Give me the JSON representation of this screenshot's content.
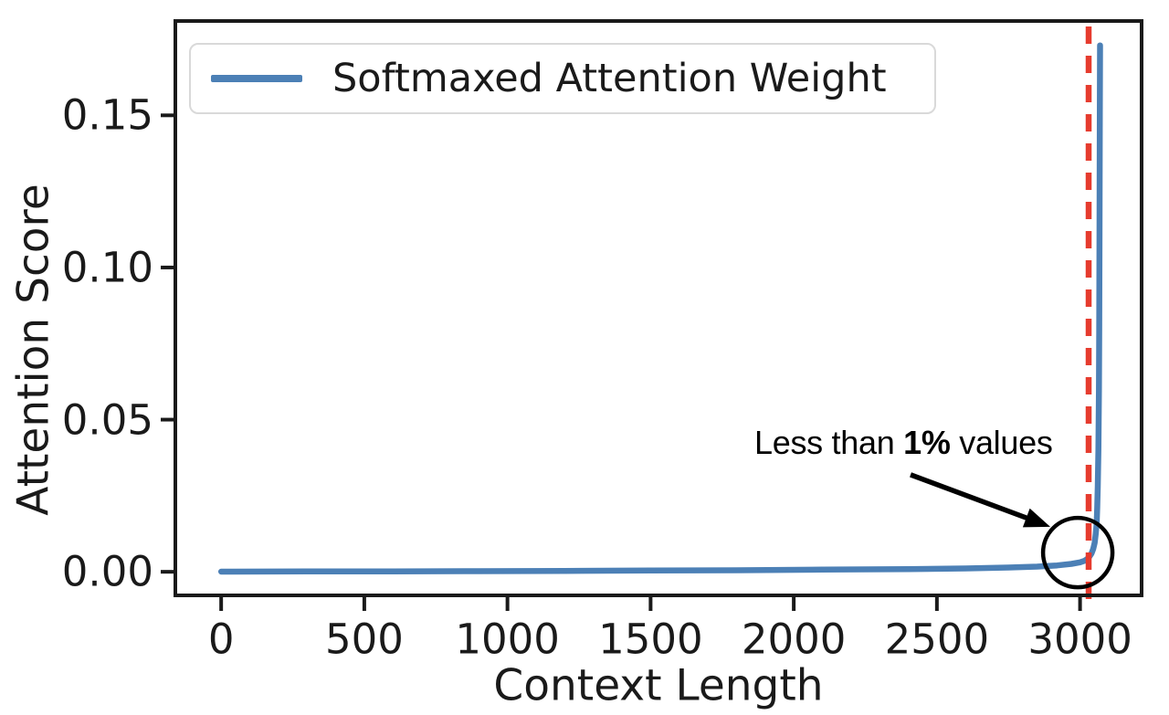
{
  "figure": {
    "background": "#ffffff",
    "text_color": "#1a1a1a",
    "frame_color": "#1a1a1a"
  },
  "chart_data": {
    "type": "line",
    "title": "",
    "xlabel": "Context Length",
    "ylabel": "Attention Score",
    "xlim": [
      -160,
      3215
    ],
    "ylim": [
      -0.00775,
      0.181
    ],
    "x_ticks": [
      0,
      500,
      1000,
      1500,
      2000,
      2500,
      3000
    ],
    "y_ticks": [
      "0.00",
      "0.05",
      "0.10",
      "0.15"
    ],
    "grid": false,
    "legend": {
      "position": "upper left",
      "entries": [
        {
          "label": "Softmaxed Attention Weight",
          "color": "#4c80b6"
        }
      ]
    },
    "series": [
      {
        "name": "Softmaxed Attention Weight",
        "color": "#4c80b6",
        "points": [
          [
            0,
            5e-05
          ],
          [
            300,
            0.0001
          ],
          [
            600,
            0.00015
          ],
          [
            900,
            0.0002
          ],
          [
            1200,
            0.0003
          ],
          [
            1500,
            0.0004
          ],
          [
            1800,
            0.0005
          ],
          [
            2100,
            0.0007
          ],
          [
            2400,
            0.0009
          ],
          [
            2600,
            0.0011
          ],
          [
            2750,
            0.0014
          ],
          [
            2850,
            0.0017
          ],
          [
            2920,
            0.0021
          ],
          [
            2970,
            0.0026
          ],
          [
            3000,
            0.0031
          ],
          [
            3015,
            0.0036
          ],
          [
            3025,
            0.0042
          ],
          [
            3033,
            0.005
          ],
          [
            3040,
            0.006
          ],
          [
            3046,
            0.0075
          ],
          [
            3051,
            0.0095
          ],
          [
            3055,
            0.0125
          ],
          [
            3058,
            0.016
          ],
          [
            3060,
            0.021
          ],
          [
            3062,
            0.028
          ],
          [
            3064,
            0.04
          ],
          [
            3066,
            0.06
          ],
          [
            3067,
            0.08
          ],
          [
            3068,
            0.11
          ],
          [
            3069,
            0.145
          ],
          [
            3070,
            0.173
          ]
        ]
      }
    ],
    "vline": {
      "x": 3030,
      "color": "#e63b2e",
      "style": "dashed"
    },
    "annotation": {
      "text_prefix": "Less than ",
      "text_bold": "1%",
      "text_suffix": " values",
      "color": "#000000",
      "arrow": {
        "x1": 2408,
        "y1": 0.0319,
        "x2": 2896,
        "y2": 0.0148
      },
      "circle": {
        "x": 2992,
        "y": 0.0063,
        "radius_px": 38
      }
    }
  }
}
